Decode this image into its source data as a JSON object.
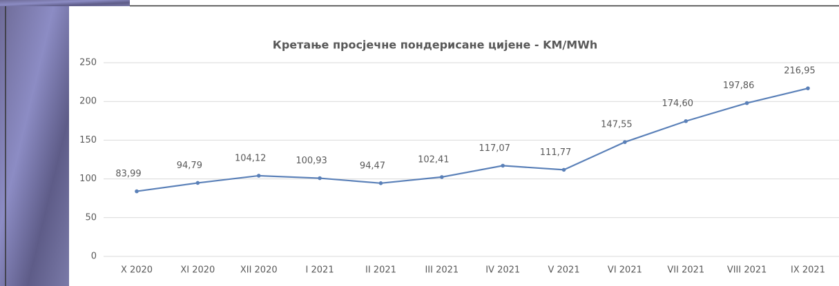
{
  "chart_data": {
    "type": "line",
    "title": "Кретање просјечне пондерисане цијене - KM/MWh",
    "categories": [
      "X 2020",
      "XI 2020",
      "XII 2020",
      "I 2021",
      "II 2021",
      "III 2021",
      "IV 2021",
      "V 2021",
      "VI 2021",
      "VII 2021",
      "VIII 2021",
      "IX 2021"
    ],
    "series": [
      {
        "color": "#5a80b8",
        "values": [
          83.99,
          94.79,
          104.12,
          100.93,
          94.47,
          102.41,
          117.07,
          111.77,
          147.55,
          174.6,
          197.86,
          216.95
        ],
        "value_labels": [
          "83,99",
          "94,79",
          "104,12",
          "100,93",
          "94,47",
          "102,41",
          "117,07",
          "111,77",
          "147,55",
          "174,60",
          "197,86",
          "216,95"
        ]
      }
    ],
    "ylim": [
      0,
      250
    ],
    "yticks": [
      0,
      50,
      100,
      150,
      200,
      250
    ],
    "grid": true
  }
}
